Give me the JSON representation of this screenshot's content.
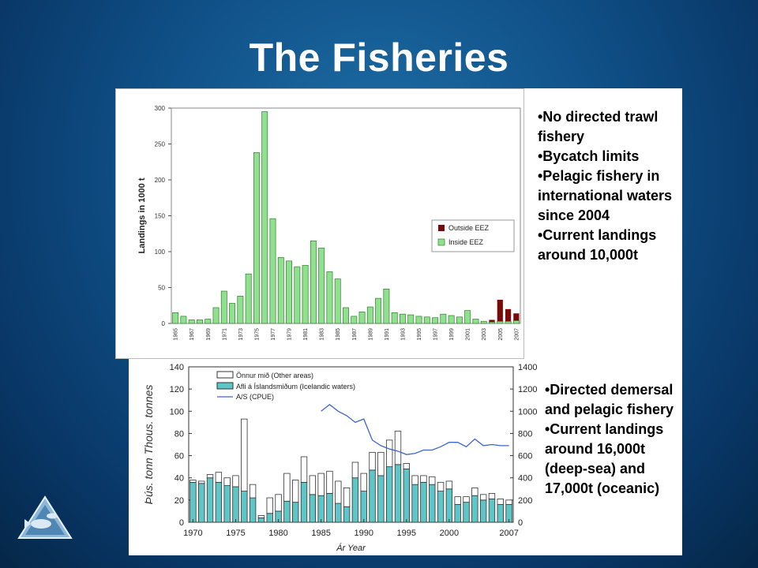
{
  "slide": {
    "title": "The Fisheries",
    "bullets_top": [
      "•No directed trawl fishery",
      "•Bycatch limits",
      "•Pelagic fishery in international waters since 2004",
      "•Current landings around 10,000t"
    ],
    "bullets_bottom": [
      "•Directed demersal and pelagic fishery",
      "•Current landings around 16,000t (deep-sea) and 17,000t (oceanic)"
    ]
  },
  "colors": {
    "inside": "#90e090",
    "inside_stroke": "#2f7f2f",
    "outside": "#7a0a0a",
    "cyan": "#5ec6c6",
    "line": "#3a66cc"
  },
  "chart_data": [
    {
      "type": "bar",
      "ylabel": "Landings in 1000 t",
      "ylim": [
        0,
        300
      ],
      "yticks": [
        0,
        50,
        100,
        150,
        200,
        250,
        300
      ],
      "legend_position": "right",
      "grid": false,
      "x": [
        1965,
        1966,
        1967,
        1968,
        1969,
        1970,
        1971,
        1972,
        1973,
        1974,
        1975,
        1976,
        1977,
        1978,
        1979,
        1980,
        1981,
        1982,
        1983,
        1984,
        1985,
        1986,
        1987,
        1988,
        1989,
        1990,
        1991,
        1992,
        1993,
        1994,
        1995,
        1996,
        1997,
        1998,
        1999,
        2000,
        2001,
        2002,
        2003,
        2004,
        2005,
        2006,
        2007
      ],
      "xtick_labels": [
        "1965",
        "1967",
        "1969",
        "1971",
        "1973",
        "1975",
        "1977",
        "1979",
        "1981",
        "1983",
        "1985",
        "1987",
        "1989",
        "1991",
        "1993",
        "1995",
        "1997",
        "1999",
        "2001",
        "2003",
        "2005",
        "2007"
      ],
      "series": [
        {
          "name": "Outside EEZ",
          "values": [
            0,
            0,
            0,
            0,
            0,
            0,
            0,
            0,
            0,
            0,
            0,
            0,
            0,
            0,
            0,
            0,
            0,
            0,
            0,
            0,
            0,
            0,
            0,
            0,
            0,
            0,
            0,
            0,
            0,
            0,
            0,
            0,
            0,
            0,
            0,
            0,
            0,
            0,
            0,
            3,
            30,
            17,
            10
          ]
        },
        {
          "name": "Inside EEZ",
          "values": [
            15,
            10,
            5,
            5,
            6,
            22,
            45,
            28,
            38,
            69,
            238,
            295,
            146,
            92,
            87,
            79,
            81,
            115,
            105,
            72,
            62,
            22,
            10,
            16,
            23,
            35,
            48,
            15,
            13,
            12,
            10,
            9,
            8,
            13,
            11,
            9,
            18,
            6,
            3,
            2,
            3,
            3,
            4
          ]
        }
      ]
    },
    {
      "type": "bar",
      "ylabel": "Þús. tonn  Thous. tonnes",
      "xlabel": "Ár  Year",
      "ylim": [
        0,
        140
      ],
      "yticks": [
        0,
        20,
        40,
        60,
        80,
        100,
        120,
        140
      ],
      "y2lim": [
        0,
        1400
      ],
      "y2ticks": [
        0,
        200,
        400,
        600,
        800,
        1000,
        1200,
        1400
      ],
      "legend_position": "top-left",
      "grid": false,
      "x": [
        1970,
        1971,
        1972,
        1973,
        1974,
        1975,
        1976,
        1977,
        1978,
        1979,
        1980,
        1981,
        1982,
        1983,
        1984,
        1985,
        1986,
        1987,
        1988,
        1989,
        1990,
        1991,
        1992,
        1993,
        1994,
        1995,
        1996,
        1997,
        1998,
        1999,
        2000,
        2001,
        2002,
        2003,
        2004,
        2005,
        2006,
        2007
      ],
      "xtick_labels": [
        "1970",
        "1975",
        "1980",
        "1985",
        "1990",
        "1995",
        "2000",
        "2007"
      ],
      "series": [
        {
          "name": "Önnur mið (Other areas)",
          "values": [
            2,
            2,
            3,
            9,
            7,
            10,
            65,
            12,
            2,
            14,
            15,
            25,
            20,
            23,
            17,
            20,
            20,
            20,
            17,
            14,
            16,
            16,
            21,
            24,
            30,
            5,
            8,
            6,
            7,
            8,
            7,
            7,
            5,
            7,
            5,
            5,
            5,
            4
          ]
        },
        {
          "name": "Afli á Íslandsmiðum (Icelandic waters)",
          "values": [
            36,
            35,
            40,
            36,
            33,
            32,
            28,
            22,
            4,
            8,
            10,
            19,
            18,
            36,
            25,
            24,
            26,
            17,
            14,
            40,
            28,
            47,
            42,
            50,
            52,
            48,
            34,
            36,
            34,
            28,
            30,
            16,
            18,
            24,
            20,
            21,
            16,
            16
          ]
        },
        {
          "name": "A/S (CPUE)",
          "axis": "right",
          "x": [
            1985,
            1986,
            1987,
            1988,
            1989,
            1990,
            1991,
            1992,
            1993,
            1994,
            1995,
            1996,
            1997,
            1998,
            1999,
            2000,
            2001,
            2002,
            2003,
            2004,
            2005,
            2006,
            2007
          ],
          "values": [
            1000,
            1060,
            1000,
            960,
            900,
            930,
            740,
            690,
            660,
            640,
            610,
            620,
            650,
            650,
            680,
            720,
            720,
            680,
            750,
            690,
            700,
            690,
            690
          ]
        }
      ]
    }
  ]
}
